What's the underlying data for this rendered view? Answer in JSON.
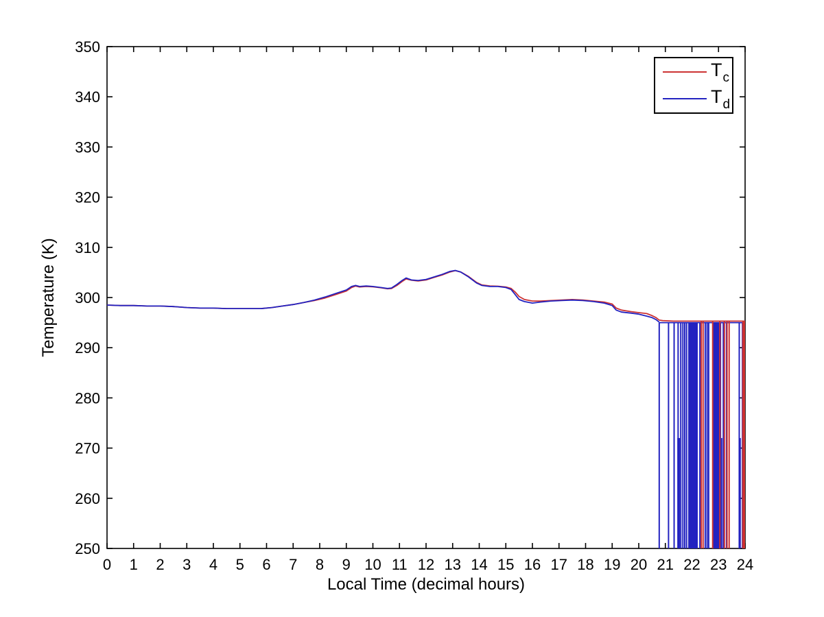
{
  "figure": {
    "background_color": "#ffffff",
    "axes_color": "#000000"
  },
  "chart_data": {
    "type": "line",
    "title": "",
    "xlabel": "Local Time (decimal hours)",
    "ylabel": "Temperature (K)",
    "xlim": [
      0,
      24
    ],
    "ylim": [
      250,
      350
    ],
    "grid": false,
    "xticks": [
      0,
      1,
      2,
      3,
      4,
      5,
      6,
      7,
      8,
      9,
      10,
      11,
      12,
      13,
      14,
      15,
      16,
      17,
      18,
      19,
      20,
      21,
      22,
      23,
      24
    ],
    "xtick_labels": [
      "0",
      "1",
      "2",
      "3",
      "4",
      "5",
      "6",
      "7",
      "8",
      "9",
      "10",
      "11",
      "12",
      "13",
      "14",
      "15",
      "16",
      "17",
      "18",
      "19",
      "20",
      "21",
      "22",
      "23",
      "24"
    ],
    "yticks": [
      250,
      260,
      270,
      280,
      290,
      300,
      310,
      320,
      330,
      340,
      350
    ],
    "ytick_labels": [
      "250",
      "260",
      "270",
      "280",
      "290",
      "300",
      "310",
      "320",
      "330",
      "340",
      "350"
    ],
    "legend": {
      "position": "top-right",
      "entries": [
        {
          "name": "Tc",
          "label_main": "T",
          "label_sub": "c",
          "color": "#cc3232"
        },
        {
          "name": "Td",
          "label_main": "T",
          "label_sub": "d",
          "color": "#2222c0"
        }
      ]
    },
    "series": [
      {
        "name": "Tc",
        "color": "#cc3232",
        "x": [
          0,
          0.5,
          1,
          1.5,
          2,
          2.5,
          3,
          3.5,
          4,
          4.5,
          5,
          5.5,
          5.8,
          6.2,
          6.6,
          7.0,
          7.4,
          7.8,
          8.2,
          8.6,
          9.0,
          9.2,
          9.35,
          9.5,
          9.75,
          10.0,
          10.3,
          10.55,
          10.7,
          10.9,
          11.1,
          11.25,
          11.45,
          11.7,
          12.0,
          12.3,
          12.6,
          12.9,
          13.1,
          13.3,
          13.6,
          13.9,
          14.1,
          14.4,
          14.7,
          15.0,
          15.2,
          15.35,
          15.5,
          15.7,
          16.0,
          16.3,
          16.7,
          17.1,
          17.5,
          17.9,
          18.3,
          18.7,
          19.0,
          19.15,
          19.35,
          19.7,
          20.0,
          20.3,
          20.5,
          20.65,
          20.77,
          20.9,
          21.3,
          22.0,
          23.0,
          24.0
        ],
        "y": [
          298.5,
          298.4,
          298.4,
          298.3,
          298.3,
          298.2,
          298.0,
          297.9,
          297.9,
          297.8,
          297.8,
          297.8,
          297.8,
          298.0,
          298.3,
          298.6,
          299.0,
          299.4,
          299.9,
          300.6,
          301.3,
          302.0,
          302.3,
          302.1,
          302.2,
          302.15,
          301.95,
          301.75,
          301.8,
          302.4,
          303.2,
          303.7,
          303.45,
          303.3,
          303.5,
          304.0,
          304.5,
          305.1,
          305.35,
          305.1,
          304.2,
          303.0,
          302.5,
          302.3,
          302.25,
          302.1,
          301.8,
          301.1,
          300.2,
          299.6,
          299.3,
          299.3,
          299.4,
          299.5,
          299.6,
          299.5,
          299.3,
          299.1,
          298.7,
          297.9,
          297.5,
          297.2,
          297.0,
          296.8,
          296.4,
          296.0,
          295.5,
          295.4,
          295.3,
          295.3,
          295.3,
          295.3
        ]
      },
      {
        "name": "Td",
        "color": "#2222c0",
        "x": [
          0,
          0.5,
          1,
          1.5,
          2,
          2.5,
          3,
          3.5,
          4,
          4.5,
          5,
          5.5,
          5.8,
          6.2,
          6.6,
          7.0,
          7.4,
          7.8,
          8.2,
          8.6,
          9.0,
          9.2,
          9.35,
          9.5,
          9.75,
          10.0,
          10.3,
          10.55,
          10.7,
          10.9,
          11.1,
          11.25,
          11.45,
          11.7,
          12.0,
          12.3,
          12.6,
          12.9,
          13.1,
          13.3,
          13.6,
          13.9,
          14.1,
          14.4,
          14.7,
          15.0,
          15.2,
          15.35,
          15.5,
          15.7,
          16.0,
          16.3,
          16.7,
          17.1,
          17.5,
          17.9,
          18.3,
          18.7,
          19.0,
          19.15,
          19.35,
          19.7,
          20.0,
          20.3,
          20.5,
          20.65,
          20.77
        ],
        "y": [
          298.5,
          298.4,
          298.4,
          298.3,
          298.3,
          298.2,
          298.0,
          297.9,
          297.9,
          297.8,
          297.8,
          297.8,
          297.8,
          298.0,
          298.3,
          298.6,
          299.0,
          299.5,
          300.1,
          300.8,
          301.5,
          302.2,
          302.4,
          302.2,
          302.3,
          302.2,
          302.0,
          301.8,
          301.9,
          302.6,
          303.4,
          303.9,
          303.5,
          303.4,
          303.6,
          304.1,
          304.6,
          305.2,
          305.4,
          305.1,
          304.1,
          302.9,
          302.4,
          302.2,
          302.2,
          302.0,
          301.6,
          300.6,
          299.6,
          299.2,
          298.9,
          299.1,
          299.3,
          299.4,
          299.5,
          299.4,
          299.2,
          298.9,
          298.4,
          297.5,
          297.1,
          296.9,
          296.7,
          296.3,
          296.0,
          295.6,
          295.1
        ]
      }
    ],
    "dropouts": {
      "note": "after ~20.8 h the Td signal intermittently drops from ~295 K to the 250 K axis floor (some samples near 272 K); Tc drops out near 22.4, 23.2-23.4 and 23.9-24.0 h",
      "td_top_level": 295.0,
      "td_top_segment": [
        20.77,
        24.0
      ],
      "td_vlines": [
        20.77,
        21.12,
        21.33,
        21.48,
        21.58,
        21.66,
        21.73,
        21.8,
        22.3,
        22.5,
        22.57,
        22.63,
        23.18,
        23.3,
        23.78,
        23.9
      ],
      "td_full_bands": [
        [
          21.86,
          22.22
        ],
        [
          22.8,
          23.1
        ]
      ],
      "td_272_level": 272.0,
      "td_272_bands": [
        [
          21.45,
          21.55
        ],
        [
          22.83,
          23.14
        ],
        [
          23.76,
          23.84
        ]
      ],
      "tc_top_level": 295.3,
      "tc_vlines": [
        22.35,
        22.42,
        22.78,
        23.05,
        23.22,
        23.32,
        23.4
      ],
      "tc_full_bands": [
        [
          23.89,
          24.0
        ]
      ],
      "floor_level": 250.0
    }
  }
}
